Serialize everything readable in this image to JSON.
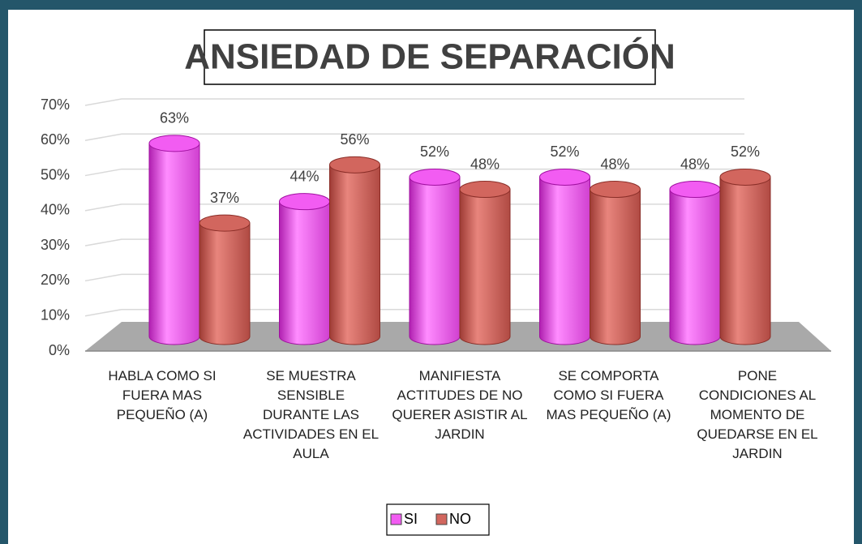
{
  "chart_data": {
    "type": "bar3d",
    "title": "ANSIEDAD DE SEPARACIÓN",
    "categories": [
      "HABLA COMO SI FUERA MAS PEQUEÑO (A)",
      "SE MUESTRA SENSIBLE DURANTE LAS ACTIVIDADES EN EL AULA",
      "MANIFIESTA ACTITUDES DE NO QUERER ASISTIR AL JARDIN",
      "SE COMPORTA COMO SI FUERA MAS PEQUEÑO (A)",
      "PONE CONDICIONES AL MOMENTO DE QUEDARSE EN EL JARDIN"
    ],
    "series": [
      {
        "name": "SI",
        "color": "#f25cf2",
        "values": [
          63,
          44,
          52,
          52,
          48
        ],
        "value_labels": [
          "63%",
          "44%",
          "52%",
          "52%",
          "48%"
        ]
      },
      {
        "name": "NO",
        "color": "#d2665e",
        "values": [
          37,
          56,
          48,
          48,
          52
        ],
        "value_labels": [
          "37%",
          "56%",
          "48%",
          "48%",
          "52%"
        ]
      }
    ],
    "ylim": [
      0,
      70
    ],
    "yticks": [
      {
        "value": 0,
        "label": "0%"
      },
      {
        "value": 10,
        "label": "10%"
      },
      {
        "value": 20,
        "label": "20%"
      },
      {
        "value": 30,
        "label": "30%"
      },
      {
        "value": 40,
        "label": "40%"
      },
      {
        "value": 50,
        "label": "50%"
      },
      {
        "value": 60,
        "label": "60%"
      },
      {
        "value": 70,
        "label": "70%"
      }
    ],
    "grid": true,
    "legend": "bottom"
  }
}
